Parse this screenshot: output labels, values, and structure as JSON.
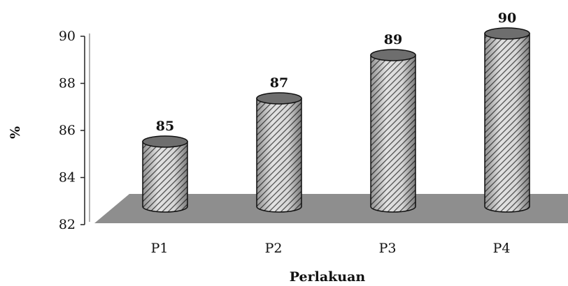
{
  "chart_data": {
    "type": "bar",
    "categories": [
      "P1",
      "P2",
      "P3",
      "P4"
    ],
    "values": [
      85,
      87,
      89,
      90
    ],
    "data_labels": [
      "85",
      "87",
      "89",
      "90"
    ],
    "y_ticks": [
      "82",
      "84",
      "86",
      "88",
      "90"
    ],
    "ylim": [
      82,
      90
    ],
    "ylabel": "%",
    "xlabel": "Perlakuan",
    "grid": false,
    "style": "3d-cylinder",
    "colors": {
      "bar_hatch": "#9a9a9a",
      "bar_base": "#dcdcdc",
      "floor": "#8c8c8c",
      "axis": "#222222"
    }
  }
}
